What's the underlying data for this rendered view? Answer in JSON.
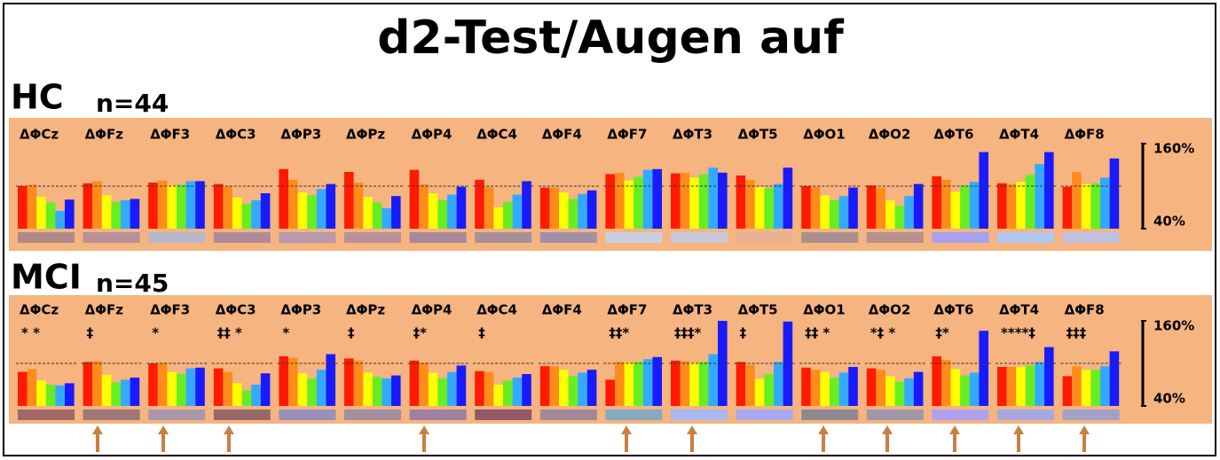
{
  "title": "d2-Test/Augen auf",
  "chart_data": [
    {
      "type": "bar",
      "title": "HC",
      "subtitle": "n=44",
      "categories": [
        "ΔΦCz",
        "ΔΦFz",
        "ΔΦF3",
        "ΔΦC3",
        "ΔΦP3",
        "ΔΦPz",
        "ΔΦP4",
        "ΔΦC4",
        "ΔΦF4",
        "ΔΦF7",
        "ΔΦT3",
        "ΔΦT5",
        "ΔΦO1",
        "ΔΦO2",
        "ΔΦT6",
        "ΔΦT4",
        "ΔΦF8"
      ],
      "series": [
        {
          "color": "#ff1a00",
          "values": [
            100,
            104,
            105,
            103,
            124,
            120,
            123,
            109,
            98,
            117,
            118,
            115,
            100,
            101,
            114,
            104,
            99
          ]
        },
        {
          "color": "#ff8c1a",
          "values": [
            102,
            107,
            108,
            100,
            109,
            105,
            103,
            99,
            98,
            119,
            119,
            109,
            99,
            98,
            109,
            103,
            120
          ]
        },
        {
          "color": "#ffff00",
          "values": [
            85,
            87,
            101,
            84,
            91,
            85,
            90,
            70,
            91,
            108,
            112,
            99,
            87,
            80,
            92,
            106,
            103
          ]
        },
        {
          "color": "#66ee22",
          "values": [
            77,
            78,
            102,
            75,
            87,
            77,
            80,
            78,
            82,
            113,
            117,
            97,
            80,
            72,
            101,
            116,
            104
          ]
        },
        {
          "color": "#33aaff",
          "values": [
            65,
            80,
            107,
            80,
            96,
            69,
            88,
            88,
            89,
            123,
            126,
            103,
            86,
            86,
            106,
            131,
            112
          ]
        },
        {
          "color": "#1a1aff",
          "values": [
            81,
            82,
            107,
            90,
            103,
            86,
            99,
            107,
            94,
            124,
            119,
            126,
            98,
            103,
            148,
            148,
            139
          ]
        }
      ],
      "base_colors": [
        "#b08a8a",
        "#b8909a",
        "#b8b8cc",
        "#b08a9a",
        "#b898aa",
        "#b89098",
        "#a88898",
        "#a89098",
        "#a090a8",
        "#c8d0e0",
        "#c8c8d8",
        "#e8b090",
        "#a89090",
        "#b89090",
        "#a8a0f0",
        "#b0c8f0",
        "#c0c0e0"
      ],
      "ylim": [
        40,
        160
      ],
      "yticks": [
        {
          "value": 40,
          "label": "40%"
        },
        {
          "value": 160,
          "label": "160%"
        }
      ],
      "reference": 100
    },
    {
      "type": "bar",
      "title": "MCI",
      "subtitle": "n=45",
      "categories": [
        "ΔΦCz",
        "ΔΦFz",
        "ΔΦF3",
        "ΔΦC3",
        "ΔΦP3",
        "ΔΦPz",
        "ΔΦP4",
        "ΔΦC4",
        "ΔΦF4",
        "ΔΦF7",
        "ΔΦT3",
        "ΔΦT5",
        "ΔΦO1",
        "ΔΦO2",
        "ΔΦT6",
        "ΔΦT4",
        "ΔΦF8"
      ],
      "series": [
        {
          "color": "#ff1a00",
          "values": [
            88,
            102,
            100,
            93,
            110,
            107,
            104,
            89,
            96,
            77,
            104,
            102,
            94,
            93,
            110,
            95,
            82
          ]
        },
        {
          "color": "#ff8c1a",
          "values": [
            92,
            103,
            101,
            88,
            108,
            104,
            101,
            88,
            96,
            102,
            103,
            98,
            91,
            91,
            105,
            95,
            96
          ]
        },
        {
          "color": "#ffff00",
          "values": [
            76,
            84,
            88,
            72,
            86,
            87,
            87,
            70,
            91,
            101,
            101,
            78,
            88,
            82,
            92,
            95,
            91
          ]
        },
        {
          "color": "#66ee22",
          "values": [
            70,
            73,
            85,
            62,
            79,
            81,
            79,
            76,
            82,
            102,
            102,
            85,
            80,
            74,
            83,
            97,
            91
          ]
        },
        {
          "color": "#33aaff",
          "values": [
            69,
            77,
            93,
            70,
            91,
            79,
            88,
            80,
            87,
            106,
            113,
            102,
            87,
            79,
            87,
            102,
            96
          ]
        },
        {
          "color": "#1a1aff",
          "values": [
            72,
            80,
            94,
            86,
            113,
            83,
            97,
            85,
            91,
            109,
            160,
            159,
            95,
            88,
            146,
            123,
            117
          ]
        }
      ],
      "base_colors": [
        "#a06868",
        "#a07878",
        "#a898a8",
        "#986868",
        "#9890b8",
        "#a090a0",
        "#a080a0",
        "#905868",
        "#a08898",
        "#88a8c0",
        "#a8b8f0",
        "#a8a8f0",
        "#908890",
        "#a098a8",
        "#b0a0f0",
        "#a8a8e0",
        "#a0a0c8"
      ],
      "annotations": [
        "*   *",
        "‡",
        "*",
        "‡‡ *",
        "*",
        "‡",
        "‡*",
        "‡",
        null,
        "‡‡*",
        "‡‡‡*",
        "‡",
        "‡‡ *",
        "*‡ *",
        "‡*",
        "****‡",
        "‡‡‡"
      ],
      "ylim": [
        40,
        160
      ],
      "yticks": [
        {
          "value": 40,
          "label": "40%"
        },
        {
          "value": 160,
          "label": "160%"
        }
      ],
      "reference": 100
    }
  ]
}
